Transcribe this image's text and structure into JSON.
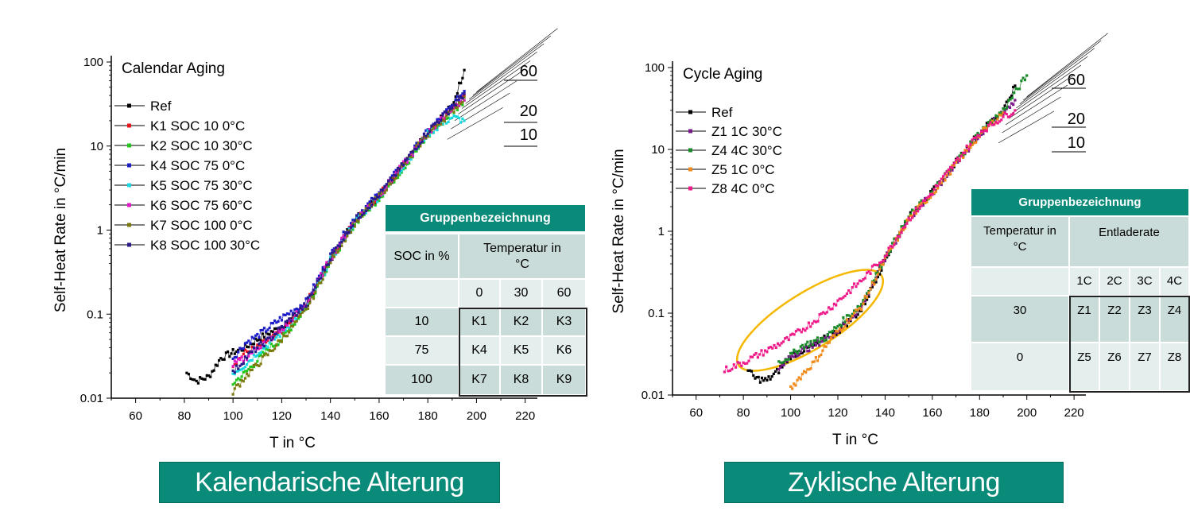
{
  "chart_data": [
    {
      "type": "scatter",
      "title": "Calendar Aging",
      "xlabel": "T in °C",
      "ylabel": "Self-Heat Rate in °C/min",
      "xlim": [
        50,
        225
      ],
      "ylim": [
        0.01,
        100
      ],
      "yscale": "log",
      "x_ticks": [
        "60",
        "80",
        "100",
        "120",
        "140",
        "160",
        "180",
        "200",
        "220"
      ],
      "y_ticks": [
        "0.01",
        "0.1",
        "1",
        "10",
        "100"
      ],
      "legend_position": "top-left",
      "grid": false,
      "right_labels": [
        "60",
        "20",
        "10"
      ],
      "series": [
        {
          "name": "Ref",
          "color": "#000000",
          "x": [
            81,
            85,
            90,
            95,
            100,
            105,
            110,
            115,
            120,
            130,
            140,
            150,
            160,
            170,
            180,
            190,
            195
          ],
          "y": [
            0.02,
            0.016,
            0.018,
            0.03,
            0.035,
            0.04,
            0.05,
            0.06,
            0.07,
            0.12,
            0.45,
            1.3,
            2.5,
            6,
            15,
            30,
            80
          ]
        },
        {
          "name": "K1 SOC 10 0°C",
          "color": "#e8131b",
          "x": [
            100,
            105,
            110,
            115,
            120,
            130,
            140,
            150,
            160,
            170,
            180,
            190,
            195
          ],
          "y": [
            0.025,
            0.035,
            0.04,
            0.05,
            0.06,
            0.13,
            0.45,
            1.3,
            2.6,
            6,
            14,
            28,
            40
          ]
        },
        {
          "name": "K2 SOC 10 30°C",
          "color": "#22c41e",
          "x": [
            100,
            105,
            110,
            115,
            120,
            130,
            140,
            150,
            160,
            170,
            180,
            190,
            195
          ],
          "y": [
            0.015,
            0.02,
            0.028,
            0.04,
            0.05,
            0.12,
            0.42,
            1.2,
            2.4,
            5.5,
            13,
            25,
            35
          ]
        },
        {
          "name": "K4 SOC 75 0°C",
          "color": "#1d1dc8",
          "x": [
            100,
            105,
            110,
            115,
            120,
            130,
            140,
            150,
            160,
            170,
            180,
            190,
            195
          ],
          "y": [
            0.03,
            0.045,
            0.055,
            0.07,
            0.09,
            0.14,
            0.5,
            1.4,
            2.7,
            6.2,
            15,
            30,
            45
          ]
        },
        {
          "name": "K5 SOC 75 30°C",
          "color": "#18d8e0",
          "x": [
            100,
            105,
            110,
            115,
            120,
            130,
            140,
            150,
            160,
            170,
            180,
            190,
            195
          ],
          "y": [
            0.02,
            0.025,
            0.035,
            0.045,
            0.06,
            0.12,
            0.44,
            1.25,
            2.5,
            5.8,
            14,
            22,
            20
          ]
        },
        {
          "name": "K6 SOC 75 60°C",
          "color": "#e018c8",
          "x": [
            100,
            105,
            110,
            115,
            120,
            130,
            140,
            150,
            160,
            170,
            180,
            190,
            195
          ],
          "y": [
            0.025,
            0.03,
            0.04,
            0.05,
            0.065,
            0.13,
            0.46,
            1.3,
            2.6,
            6,
            14,
            28,
            35
          ]
        },
        {
          "name": "K7 SOC 100 0°C",
          "color": "#7c7a0e",
          "x": [
            100,
            105,
            110,
            115,
            120,
            130,
            140,
            150,
            160,
            170,
            180,
            190,
            195
          ],
          "y": [
            0.012,
            0.018,
            0.025,
            0.035,
            0.05,
            0.11,
            0.43,
            1.2,
            2.5,
            5.9,
            14,
            26,
            38
          ]
        },
        {
          "name": "K8 SOC 100 30°C",
          "color": "#2a1a8a",
          "x": [
            100,
            105,
            110,
            115,
            120,
            130,
            140,
            150,
            160,
            170,
            180,
            190,
            195
          ],
          "y": [
            0.02,
            0.03,
            0.04,
            0.05,
            0.07,
            0.13,
            0.47,
            1.3,
            2.6,
            6.1,
            15,
            29,
            42
          ]
        }
      ],
      "group_table": {
        "header": "Gruppenbezeichnung",
        "row_label": "SOC in %",
        "col_label": "Temperatur in °C",
        "cols": [
          "0",
          "30",
          "60"
        ],
        "rows": [
          {
            "label": "10",
            "cells": [
              "K1",
              "K2",
              "K3"
            ]
          },
          {
            "label": "75",
            "cells": [
              "K4",
              "K5",
              "K6"
            ]
          },
          {
            "label": "100",
            "cells": [
              "K7",
              "K8",
              "K9"
            ]
          }
        ]
      },
      "banner": "Kalendarische Alterung"
    },
    {
      "type": "scatter",
      "title": "Cycle Aging",
      "xlabel": "T in °C",
      "ylabel": "Self-Heat Rate in °C/min",
      "xlim": [
        50,
        225
      ],
      "ylim": [
        0.01,
        100
      ],
      "yscale": "log",
      "x_ticks": [
        "60",
        "80",
        "100",
        "120",
        "140",
        "160",
        "180",
        "200",
        "220"
      ],
      "y_ticks": [
        "0.01",
        "0.1",
        "1",
        "10",
        "100"
      ],
      "legend_position": "top-left",
      "grid": false,
      "right_labels": [
        "60",
        "20",
        "10"
      ],
      "highlight_ellipse_color": "#f5b800",
      "series": [
        {
          "name": "Ref",
          "color": "#000000",
          "x": [
            82,
            85,
            90,
            95,
            100,
            105,
            110,
            115,
            120,
            130,
            140,
            150,
            160,
            170,
            180,
            190,
            195
          ],
          "y": [
            0.02,
            0.016,
            0.015,
            0.02,
            0.03,
            0.035,
            0.04,
            0.05,
            0.06,
            0.11,
            0.45,
            1.5,
            3,
            7,
            16,
            30,
            60
          ]
        },
        {
          "name": "Z1 1C 30°C",
          "color": "#7a1a8a",
          "x": [
            95,
            100,
            105,
            110,
            115,
            120,
            130,
            140,
            150,
            160,
            170,
            180,
            190,
            195
          ],
          "y": [
            0.02,
            0.03,
            0.035,
            0.04,
            0.05,
            0.06,
            0.12,
            0.46,
            1.4,
            2.9,
            6.5,
            15,
            28,
            40
          ]
        },
        {
          "name": "Z4 4C 30°C",
          "color": "#1a8a2a",
          "x": [
            95,
            100,
            105,
            110,
            115,
            120,
            130,
            140,
            150,
            160,
            170,
            180,
            190,
            200
          ],
          "y": [
            0.025,
            0.03,
            0.04,
            0.045,
            0.05,
            0.07,
            0.13,
            0.48,
            1.5,
            3,
            7,
            16,
            30,
            80
          ]
        },
        {
          "name": "Z5 1C 0°C",
          "color": "#f08a1a",
          "x": [
            100,
            105,
            110,
            115,
            120,
            130,
            140,
            150,
            160,
            170,
            180,
            190
          ],
          "y": [
            0.012,
            0.018,
            0.025,
            0.04,
            0.06,
            0.12,
            0.45,
            1.4,
            2.9,
            6.6,
            15,
            28
          ]
        },
        {
          "name": "Z8 4C 0°C",
          "color": "#ee1a8a",
          "x": [
            72,
            80,
            90,
            100,
            110,
            120,
            130,
            140,
            150,
            160,
            170,
            180,
            190,
            195
          ],
          "y": [
            0.02,
            0.025,
            0.035,
            0.05,
            0.08,
            0.14,
            0.25,
            0.5,
            1.4,
            3,
            7,
            16,
            25,
            30
          ]
        }
      ],
      "group_table": {
        "header": "Gruppenbezeichnung",
        "row_label": "Temperatur in °C",
        "col_label": "Entladerate",
        "cols": [
          "1C",
          "2C",
          "3C",
          "4C"
        ],
        "rows": [
          {
            "label": "30",
            "cells": [
              "Z1",
              "Z2",
              "Z3",
              "Z4"
            ]
          },
          {
            "label": "0",
            "cells": [
              "Z5",
              "Z6",
              "Z7",
              "Z8"
            ]
          }
        ]
      },
      "banner": "Zyklische Alterung"
    }
  ]
}
